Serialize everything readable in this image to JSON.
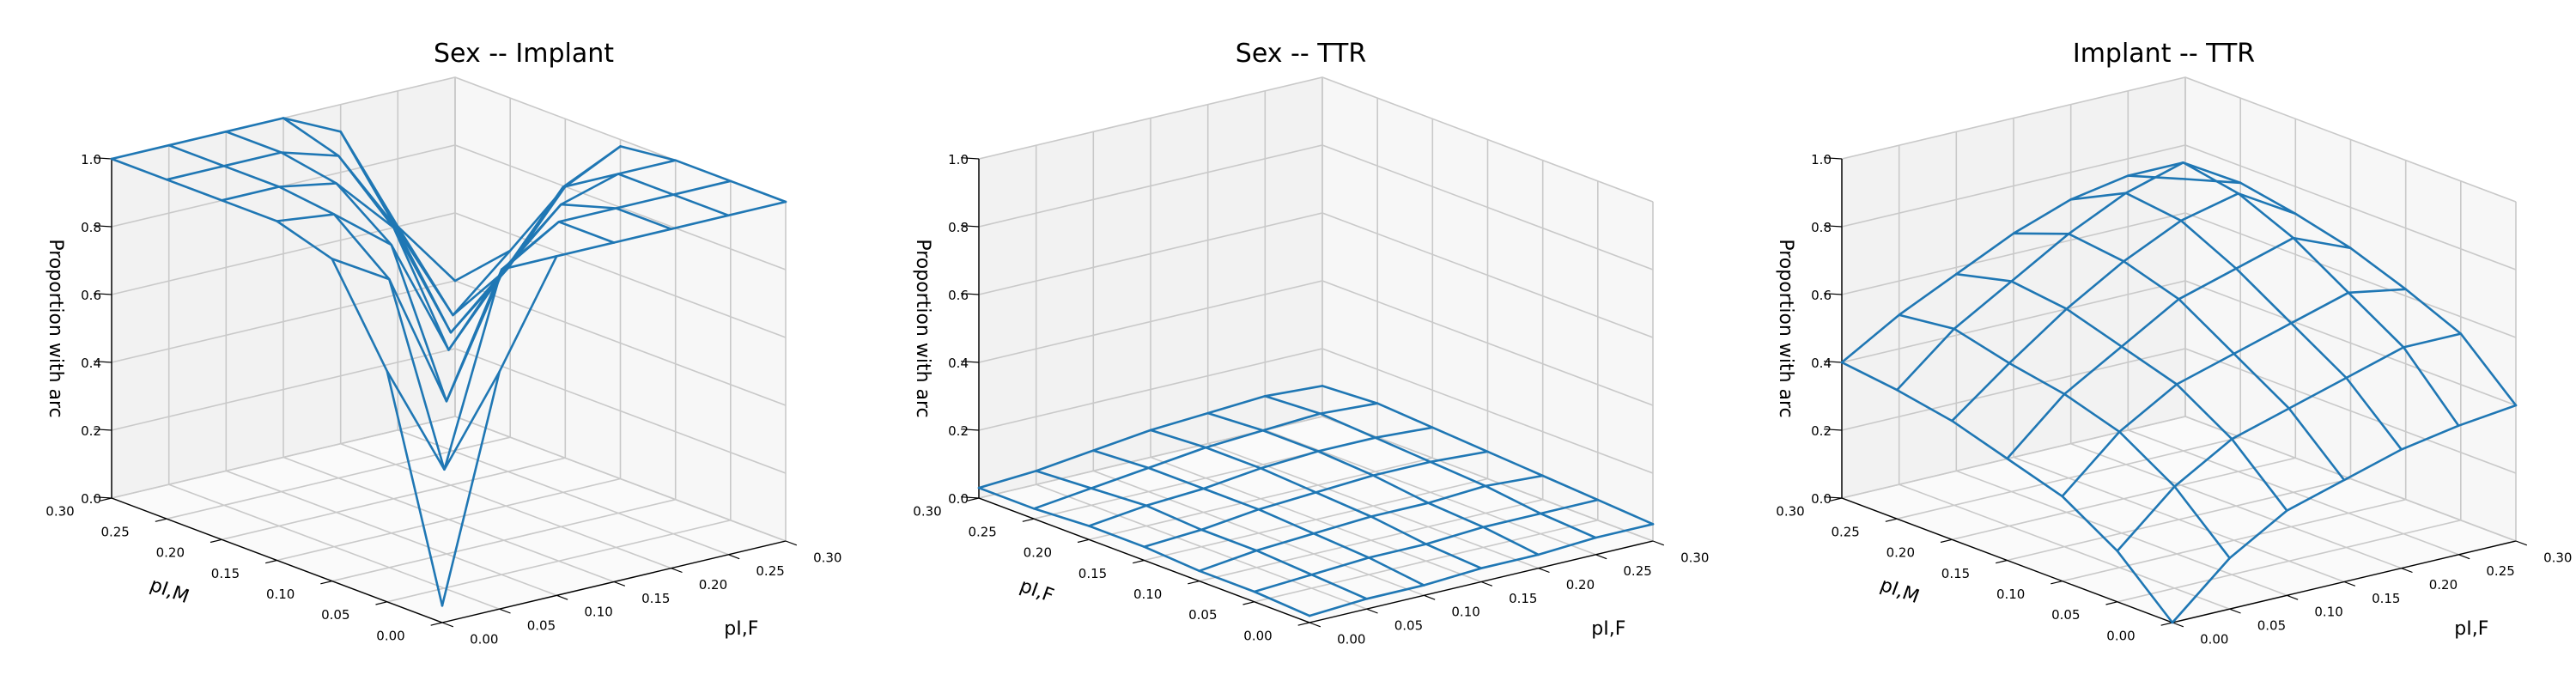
{
  "chart_data": [
    {
      "type": "surface",
      "title": "Sex -- Implant",
      "xlabel": "p₁,F",
      "xlabel_text": "pI,F",
      "ylabel": "pI,M",
      "zlabel": "Proportion with arc",
      "xlim": [
        0.0,
        0.3
      ],
      "ylim": [
        0.0,
        0.3
      ],
      "zlim": [
        0.0,
        1.0
      ],
      "xticks": [
        "0.00",
        "0.05",
        "0.10",
        "0.15",
        "0.20",
        "0.25",
        "0.30"
      ],
      "yticks": [
        "0.00",
        "0.05",
        "0.10",
        "0.15",
        "0.20",
        "0.25",
        "0.30"
      ],
      "zticks": [
        "0.0",
        "0.2",
        "0.4",
        "0.6",
        "0.8",
        "1.0"
      ],
      "grid": true,
      "x": [
        0.0,
        0.05,
        0.1,
        0.15,
        0.2,
        0.25,
        0.3
      ],
      "y": [
        0.0,
        0.05,
        0.1,
        0.15,
        0.2,
        0.25,
        0.3
      ],
      "z": [
        [
          0.05,
          0.7,
          1.0,
          1.0,
          1.0,
          1.0,
          1.0
        ],
        [
          0.68,
          0.35,
          0.9,
          1.0,
          1.0,
          1.0,
          1.0
        ],
        [
          0.95,
          0.85,
          0.45,
          0.8,
          0.95,
          1.0,
          1.0
        ],
        [
          1.0,
          0.98,
          0.85,
          0.5,
          0.7,
          0.9,
          0.98
        ],
        [
          1.0,
          1.0,
          0.97,
          0.8,
          0.45,
          0.6,
          0.8
        ],
        [
          1.0,
          1.0,
          1.0,
          0.95,
          0.7,
          0.4,
          0.55
        ],
        [
          1.0,
          1.0,
          1.0,
          1.0,
          0.92,
          0.6,
          0.4
        ]
      ]
    },
    {
      "type": "surface",
      "title": "Sex -- TTR",
      "xlabel_text": "pI,F",
      "ylabel": "pI,F",
      "zlabel": "Proportion with arc",
      "xlim": [
        0.0,
        0.3
      ],
      "ylim": [
        0.0,
        0.3
      ],
      "zlim": [
        0.0,
        1.0
      ],
      "xticks": [
        "0.00",
        "0.05",
        "0.10",
        "0.15",
        "0.20",
        "0.25",
        "0.30"
      ],
      "yticks": [
        "0.00",
        "0.05",
        "0.10",
        "0.15",
        "0.20",
        "0.25",
        "0.30"
      ],
      "zticks": [
        "0.0",
        "0.2",
        "0.4",
        "0.6",
        "0.8",
        "1.0"
      ],
      "grid": true,
      "x": [
        0.0,
        0.05,
        0.1,
        0.15,
        0.2,
        0.25,
        0.3
      ],
      "y": [
        0.0,
        0.05,
        0.1,
        0.15,
        0.2,
        0.25,
        0.3
      ],
      "z": [
        [
          0.02,
          0.03,
          0.03,
          0.04,
          0.04,
          0.05,
          0.05
        ],
        [
          0.03,
          0.04,
          0.05,
          0.05,
          0.06,
          0.06,
          0.06
        ],
        [
          0.03,
          0.05,
          0.06,
          0.07,
          0.07,
          0.08,
          0.07
        ],
        [
          0.04,
          0.05,
          0.07,
          0.08,
          0.09,
          0.09,
          0.08
        ],
        [
          0.04,
          0.06,
          0.07,
          0.09,
          0.1,
          0.1,
          0.09
        ],
        [
          0.03,
          0.05,
          0.07,
          0.09,
          0.1,
          0.11,
          0.1
        ],
        [
          0.03,
          0.04,
          0.06,
          0.08,
          0.09,
          0.1,
          0.09
        ]
      ]
    },
    {
      "type": "surface",
      "title": "Implant -- TTR",
      "xlabel_text": "pI,F",
      "ylabel": "pI,M",
      "zlabel": "Proportion with arc",
      "xlim": [
        0.0,
        0.3
      ],
      "ylim": [
        0.0,
        0.3
      ],
      "zlim": [
        0.0,
        1.0
      ],
      "xticks": [
        "0.00",
        "0.05",
        "0.10",
        "0.15",
        "0.20",
        "0.25",
        "0.30"
      ],
      "yticks": [
        "0.00",
        "0.05",
        "0.10",
        "0.15",
        "0.20",
        "0.25",
        "0.30"
      ],
      "zticks": [
        "0.0",
        "0.2",
        "0.4",
        "0.6",
        "0.8",
        "1.0"
      ],
      "grid": true,
      "x": [
        0.0,
        0.05,
        0.1,
        0.15,
        0.2,
        0.25,
        0.3
      ],
      "y": [
        0.0,
        0.05,
        0.1,
        0.15,
        0.2,
        0.25,
        0.3
      ],
      "z": [
        [
          0.0,
          0.15,
          0.25,
          0.3,
          0.35,
          0.38,
          0.4
        ],
        [
          0.15,
          0.3,
          0.4,
          0.45,
          0.5,
          0.55,
          0.55
        ],
        [
          0.25,
          0.4,
          0.5,
          0.55,
          0.6,
          0.65,
          0.62
        ],
        [
          0.3,
          0.45,
          0.55,
          0.65,
          0.7,
          0.75,
          0.68
        ],
        [
          0.35,
          0.48,
          0.6,
          0.7,
          0.78,
          0.82,
          0.72
        ],
        [
          0.38,
          0.52,
          0.62,
          0.72,
          0.8,
          0.85,
          0.75
        ],
        [
          0.4,
          0.5,
          0.58,
          0.66,
          0.72,
          0.75,
          0.7
        ]
      ]
    }
  ]
}
